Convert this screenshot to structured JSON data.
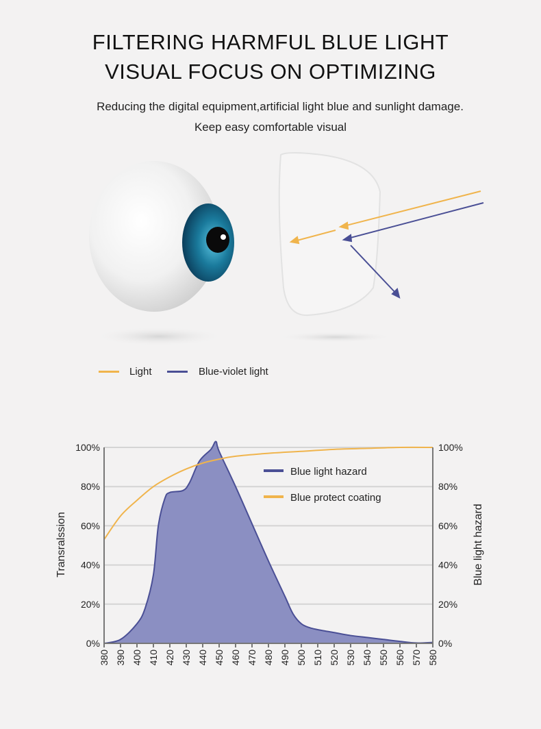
{
  "header": {
    "title_line1": "FILTERING HARMFUL BLUE LIGHT",
    "title_line2": "VISUAL FOCUS ON OPTIMIZING",
    "subtitle_line1": "Reducing the digital equipment,artificial light blue and sunlight damage.",
    "subtitle_line2": "Keep easy comfortable visual"
  },
  "illustration": {
    "legend": [
      {
        "label": "Light",
        "color": "#f0b44c"
      },
      {
        "label": "Blue-violet light",
        "color": "#4a4f95"
      }
    ],
    "iris_color": "#1a7a9c"
  },
  "chart_data": {
    "type": "area",
    "xlabel": "",
    "ylabel": "Transralssion",
    "ylabel_right": "Blue light hazard",
    "xlim": [
      380,
      580
    ],
    "ylim": [
      0,
      100
    ],
    "x_ticks": [
      "380",
      "390",
      "400",
      "410",
      "420",
      "430",
      "440",
      "450",
      "460",
      "470",
      "480",
      "490",
      "500",
      "510",
      "520",
      "530",
      "540",
      "550",
      "560",
      "570",
      "580"
    ],
    "y_ticks": [
      "0%",
      "20%",
      "40%",
      "60%",
      "80%",
      "100%"
    ],
    "grid": true,
    "legend_position": "top-right",
    "series": [
      {
        "name": "Blue light hazard",
        "type": "area",
        "color": "#4a4f95",
        "fill": "#8b8fc2",
        "x": [
          380,
          390,
          400,
          405,
          410,
          413,
          417,
          420,
          428,
          432,
          438,
          445,
          448,
          450,
          460,
          470,
          480,
          490,
          495,
          500,
          505,
          510,
          520,
          530,
          540,
          550,
          560,
          570,
          580
        ],
        "y": [
          0,
          2,
          10,
          18,
          35,
          60,
          74,
          77,
          78,
          82,
          93,
          99,
          103,
          98,
          80,
          61,
          42,
          24,
          15,
          10,
          8,
          7,
          5.5,
          4,
          3,
          2,
          1,
          0.2,
          0.5
        ]
      },
      {
        "name": "Blue protect coating",
        "type": "line",
        "color": "#f0b44c",
        "x": [
          380,
          390,
          400,
          410,
          420,
          430,
          440,
          450,
          460,
          480,
          500,
          520,
          540,
          560,
          580
        ],
        "y": [
          53,
          65,
          73,
          80,
          85,
          89,
          92,
          94,
          95.5,
          97,
          98,
          99,
          99.5,
          100,
          100
        ]
      }
    ]
  }
}
